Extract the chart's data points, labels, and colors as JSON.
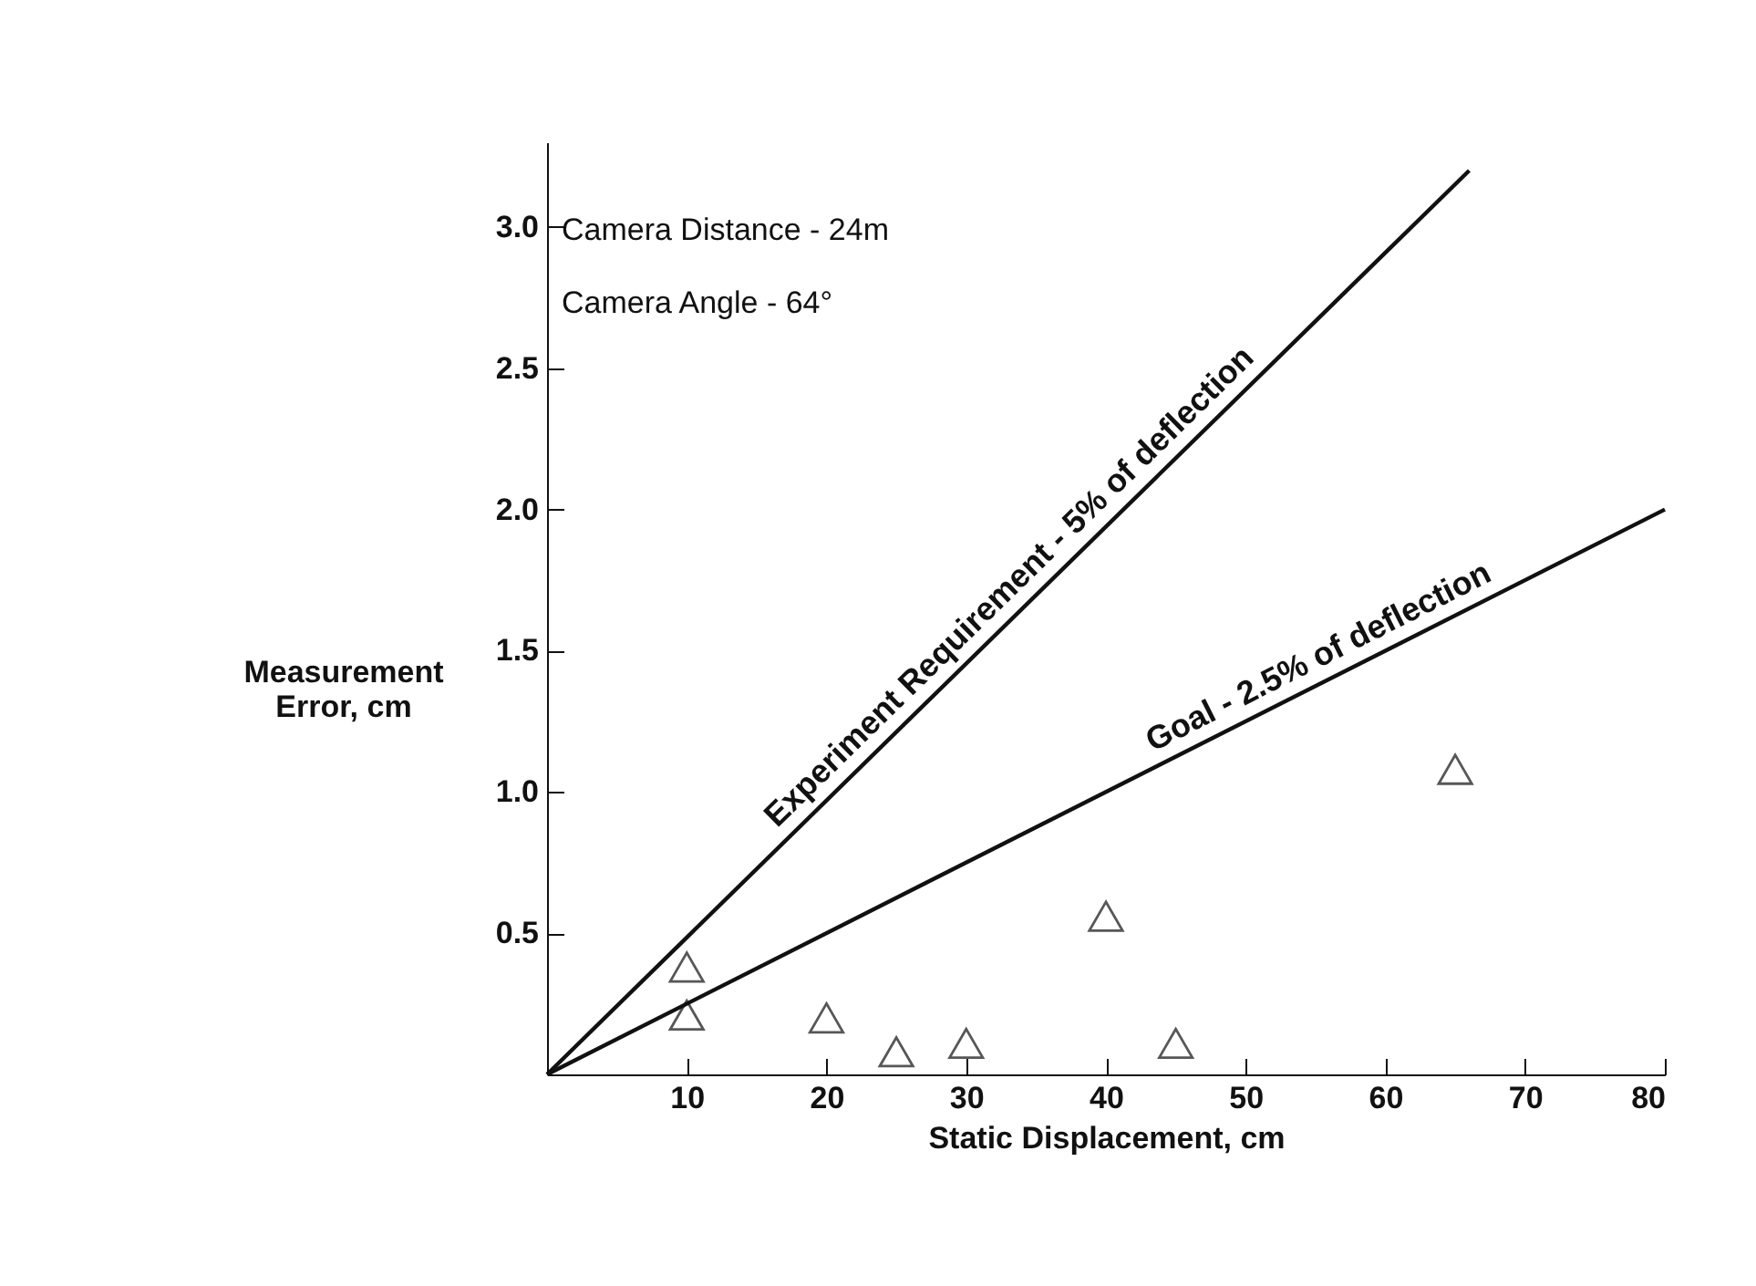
{
  "chart_data": {
    "type": "scatter",
    "xlabel": "Static Displacement, cm",
    "ylabel": "Measurement Error, cm",
    "xlim": [
      0,
      80
    ],
    "xticks": [
      10,
      20,
      30,
      40,
      50,
      60,
      70,
      80
    ],
    "ylim": [
      0,
      3.3
    ],
    "yticks": [
      0.5,
      {
        "value": 1,
        "label": "1.0"
      },
      1.5,
      {
        "value": 2,
        "label": "2.0"
      },
      2.5,
      {
        "value": 3,
        "label": "3.0"
      }
    ],
    "grid": false,
    "annotations": [
      "Camera  Distance - 24m",
      "Camera  Angle - 64°"
    ],
    "series": [
      {
        "name": "Experiment Requirement - 5% of deflection",
        "type": "line",
        "marker": "none",
        "color": "#111111",
        "x": [
          0,
          66
        ],
        "values": [
          0,
          3.2
        ]
      },
      {
        "name": "Goal - 2.5% of deflection",
        "type": "line",
        "marker": "none",
        "color": "#111111",
        "x": [
          0,
          80
        ],
        "values": [
          0,
          2.0
        ]
      },
      {
        "marker": "triangle",
        "color": "#111111",
        "x": [
          10,
          10,
          20,
          25,
          30,
          40,
          45,
          65
        ],
        "values": [
          0.38,
          0.21,
          0.2,
          0.08,
          0.11,
          0.56,
          0.11,
          1.08
        ]
      }
    ]
  }
}
